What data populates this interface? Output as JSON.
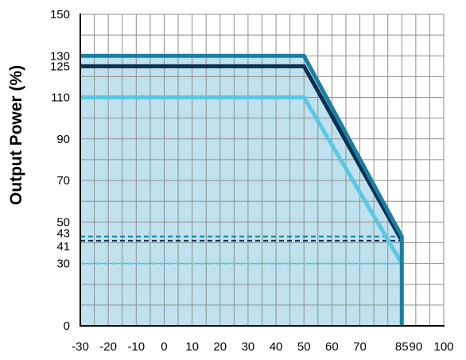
{
  "chart_data": {
    "type": "line",
    "title": "",
    "xlabel": "",
    "ylabel": "Output Power (%)",
    "xlim": [
      -30,
      100
    ],
    "ylim": [
      0,
      150
    ],
    "grid": true,
    "x_grid_step": 5,
    "y_grid_step": 10,
    "x_ticks": [
      {
        "value": -30,
        "label": "-30"
      },
      {
        "value": -20,
        "label": "-20"
      },
      {
        "value": -10,
        "label": "-10"
      },
      {
        "value": 0,
        "label": "0"
      },
      {
        "value": 10,
        "label": "10"
      },
      {
        "value": 20,
        "label": "20"
      },
      {
        "value": 30,
        "label": "30"
      },
      {
        "value": 40,
        "label": "40"
      },
      {
        "value": 50,
        "label": "50"
      },
      {
        "value": 60,
        "label": "60"
      },
      {
        "value": 70,
        "label": "70"
      },
      {
        "value": 85,
        "label": "85"
      },
      {
        "value": 90,
        "label": "90"
      },
      {
        "value": 100,
        "label": "100"
      }
    ],
    "y_ticks": [
      {
        "value": 0,
        "label": "0"
      },
      {
        "value": 30,
        "label": "30"
      },
      {
        "value": 41,
        "label": "41"
      },
      {
        "value": 43,
        "label": "43"
      },
      {
        "value": 50,
        "label": "50"
      },
      {
        "value": 70,
        "label": "70"
      },
      {
        "value": 90,
        "label": "90"
      },
      {
        "value": 110,
        "label": "110"
      },
      {
        "value": 125,
        "label": "125"
      },
      {
        "value": 130,
        "label": "130"
      },
      {
        "value": 150,
        "label": "150"
      }
    ],
    "fill": {
      "color": "#bfe2ee",
      "points": [
        [
          -30,
          0
        ],
        [
          -30,
          130
        ],
        [
          50,
          130
        ],
        [
          85,
          43
        ],
        [
          85,
          0
        ]
      ]
    },
    "series": [
      {
        "color": "#1a7fa0",
        "style": "solid",
        "points": [
          [
            -30,
            130
          ],
          [
            50,
            130
          ],
          [
            85,
            43
          ],
          [
            85,
            0
          ]
        ]
      },
      {
        "color": "#0c2f55",
        "style": "solid",
        "points": [
          [
            -30,
            125
          ],
          [
            50,
            125
          ],
          [
            85,
            41
          ]
        ]
      },
      {
        "color": "#5bc8e4",
        "style": "solid",
        "points": [
          [
            -30,
            110
          ],
          [
            50,
            110
          ],
          [
            85,
            30
          ]
        ]
      },
      {
        "color": "#1a7fa0",
        "style": "dashed",
        "points": [
          [
            -30,
            43
          ],
          [
            85,
            43
          ]
        ]
      },
      {
        "color": "#0c2f55",
        "style": "dashed",
        "points": [
          [
            -30,
            41
          ],
          [
            85,
            41
          ]
        ]
      },
      {
        "color": "#5bc8e4",
        "style": "dashed",
        "points": [
          [
            -30,
            30
          ],
          [
            85,
            30
          ]
        ]
      }
    ]
  }
}
